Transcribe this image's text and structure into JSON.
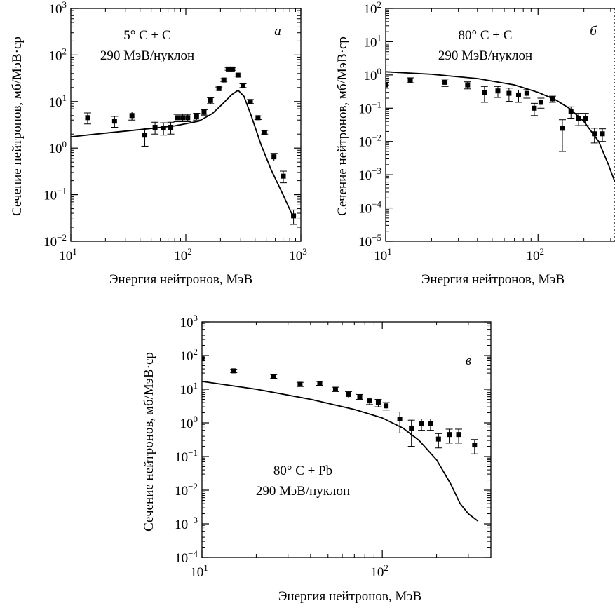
{
  "chart_data": [
    {
      "type": "scatter",
      "panel": "а",
      "annotation": [
        "5°  C + C",
        "290 МэВ/нуклон"
      ],
      "xlabel": "Энергия нейтронов, МэВ",
      "ylabel": "Сечение нейтронов, мб/МэВ·ср",
      "xscale": "log",
      "yscale": "log",
      "xlim": [
        10,
        1000
      ],
      "ylim": [
        0.01,
        1000
      ],
      "xticks": [
        {
          "base": "10",
          "exp": "1"
        },
        {
          "base": "10",
          "exp": "2"
        },
        {
          "base": "10",
          "exp": "3"
        }
      ],
      "yticks": [
        {
          "base": "10",
          "exp": "−2"
        },
        {
          "base": "10",
          "exp": "−1"
        },
        {
          "base": "10",
          "exp": "0"
        },
        {
          "base": "10",
          "exp": "1"
        },
        {
          "base": "10",
          "exp": "2"
        },
        {
          "base": "10",
          "exp": "3"
        }
      ],
      "series": [
        {
          "kind": "markers",
          "x": [
            14,
            24,
            34,
            44,
            54,
            64,
            74,
            84,
            94,
            104,
            124,
            144,
            164,
            194,
            214,
            234,
            254,
            284,
            314,
            364,
            424,
            484,
            584,
            704,
            864
          ],
          "y": [
            4.5,
            3.8,
            5.0,
            1.9,
            2.8,
            2.7,
            2.8,
            4.5,
            4.5,
            4.5,
            4.8,
            5.9,
            10.5,
            19,
            29,
            50,
            50,
            37,
            22,
            10,
            4.5,
            2.2,
            0.65,
            0.25,
            0.035
          ],
          "err": [
            1.2,
            1.0,
            1.0,
            0.8,
            0.8,
            0.8,
            0.8,
            0.8,
            0.8,
            0.8,
            0.8,
            0.8,
            1.5,
            1.5,
            2,
            3,
            3,
            2,
            2,
            1,
            0.4,
            0.2,
            0.12,
            0.07,
            0.012
          ]
        },
        {
          "kind": "line",
          "x": [
            10,
            20,
            40,
            80,
            130,
            170,
            210,
            250,
            285,
            320,
            370,
            450,
            550,
            700,
            850
          ],
          "y": [
            1.75,
            2.1,
            2.5,
            3.0,
            3.8,
            5.5,
            9,
            14,
            17.5,
            13,
            5,
            1.2,
            0.35,
            0.1,
            0.035
          ]
        }
      ]
    },
    {
      "type": "scatter",
      "panel": "б",
      "annotation": [
        "80°  C + C",
        "290 МэВ/нуклон"
      ],
      "xlabel": "Энергия нейтронов, МэВ",
      "ylabel": "Сечение нейтронов, мб/МэВ·ср",
      "xscale": "log",
      "yscale": "log",
      "xlim": [
        10,
        320
      ],
      "ylim": [
        1e-05,
        100
      ],
      "xticks": [
        {
          "base": "10",
          "exp": "1"
        },
        {
          "base": "10",
          "exp": "2"
        }
      ],
      "yticks": [
        {
          "base": "10",
          "exp": "−5"
        },
        {
          "base": "10",
          "exp": "−4"
        },
        {
          "base": "10",
          "exp": "−3"
        },
        {
          "base": "10",
          "exp": "−2"
        },
        {
          "base": "10",
          "exp": "−1"
        },
        {
          "base": "10",
          "exp": "0"
        },
        {
          "base": "10",
          "exp": "1"
        },
        {
          "base": "10",
          "exp": "2"
        }
      ],
      "series": [
        {
          "kind": "markers",
          "x": [
            10,
            14.5,
            24.5,
            34.5,
            44.5,
            54.5,
            64.5,
            74.5,
            84.5,
            94.5,
            104.5,
            124.5,
            144.5,
            164.5,
            184.5,
            204.5,
            234.5,
            264.5
          ],
          "y": [
            0.5,
            0.7,
            0.6,
            0.5,
            0.3,
            0.33,
            0.28,
            0.25,
            0.28,
            0.1,
            0.15,
            0.19,
            0.025,
            0.08,
            0.05,
            0.05,
            0.017,
            0.017
          ],
          "err": [
            0.1,
            0.12,
            0.15,
            0.12,
            0.15,
            0.12,
            0.12,
            0.1,
            0.08,
            0.04,
            0.05,
            0.04,
            0.02,
            0.03,
            0.02,
            0.02,
            0.008,
            0.007
          ]
        },
        {
          "kind": "line",
          "x": [
            10,
            20,
            40,
            70,
            100,
            130,
            160,
            200,
            250,
            290,
            320
          ],
          "y": [
            1.25,
            1.05,
            0.78,
            0.5,
            0.3,
            0.18,
            0.1,
            0.04,
            0.01,
            0.002,
            0.0006
          ]
        }
      ]
    },
    {
      "type": "scatter",
      "panel": "в",
      "annotation": [
        "80°  C + Pb",
        "290 МэВ/нуклон"
      ],
      "xlabel": "Энергия нейтронов, МэВ",
      "ylabel": "Сечение нейтронов, мб/МэВ·ср",
      "xscale": "log",
      "yscale": "log",
      "xlim": [
        10,
        400
      ],
      "ylim": [
        0.0001,
        1000
      ],
      "xticks": [
        {
          "base": "10",
          "exp": "1"
        },
        {
          "base": "10",
          "exp": "2"
        }
      ],
      "yticks": [
        {
          "base": "10",
          "exp": "−4"
        },
        {
          "base": "10",
          "exp": "−3"
        },
        {
          "base": "10",
          "exp": "−2"
        },
        {
          "base": "10",
          "exp": "−1"
        },
        {
          "base": "10",
          "exp": "0"
        },
        {
          "base": "10",
          "exp": "1"
        },
        {
          "base": "10",
          "exp": "2"
        },
        {
          "base": "10",
          "exp": "3"
        }
      ],
      "series": [
        {
          "kind": "markers",
          "x": [
            10,
            15,
            25,
            35,
            45,
            55,
            65,
            75,
            85,
            95,
            105,
            125,
            145,
            165,
            185,
            205,
            235,
            265,
            325
          ],
          "y": [
            80,
            35,
            24,
            14,
            15,
            10,
            7,
            6,
            4.5,
            4,
            3.2,
            1.3,
            0.7,
            0.95,
            0.95,
            0.33,
            0.45,
            0.45,
            0.22
          ],
          "err": [
            10,
            4,
            3,
            2,
            2,
            1.5,
            1.5,
            1,
            1,
            1,
            0.8,
            0.8,
            0.5,
            0.35,
            0.35,
            0.15,
            0.2,
            0.2,
            0.1
          ]
        },
        {
          "kind": "line",
          "x": [
            10,
            20,
            40,
            70,
            100,
            130,
            160,
            200,
            240,
            270,
            300,
            340
          ],
          "y": [
            17,
            10,
            5,
            2.5,
            1.4,
            0.7,
            0.3,
            0.08,
            0.015,
            0.004,
            0.002,
            0.0012
          ]
        }
      ]
    }
  ]
}
